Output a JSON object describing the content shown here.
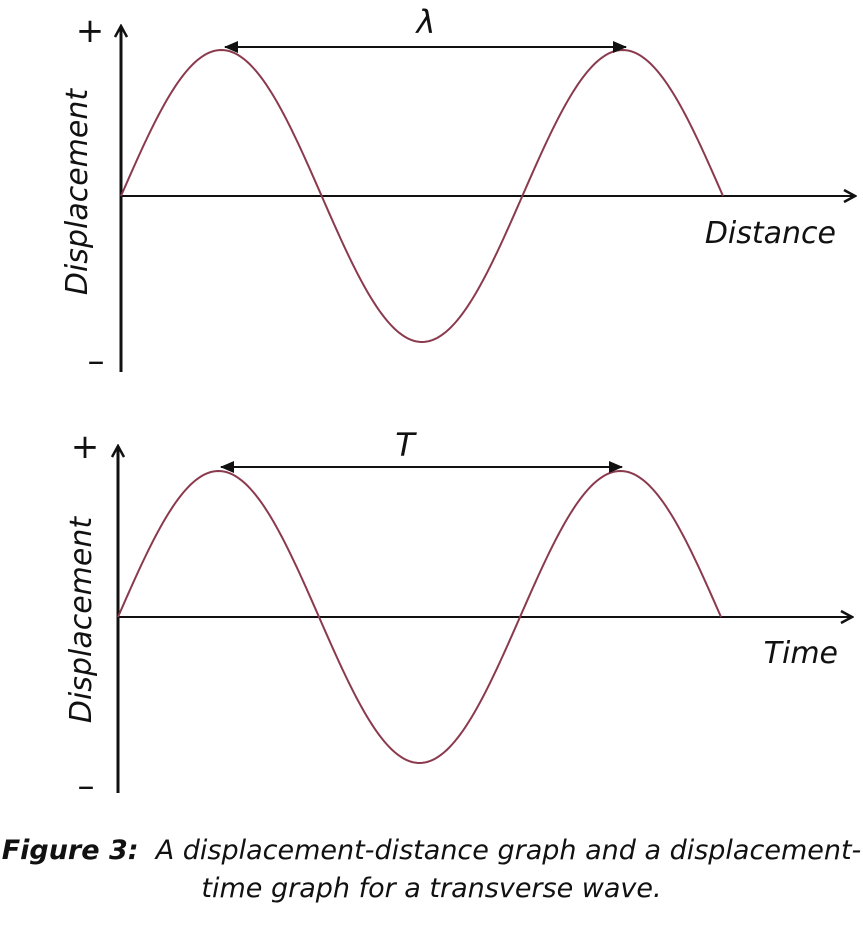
{
  "colors": {
    "wave": "#8b3a4e",
    "axes": "#111111"
  },
  "panels": [
    {
      "x_label": "Distance",
      "y_label": "Displacement",
      "plus_label": "+",
      "minus_label": "–",
      "marker_label": "λ",
      "cycles_shown": 1.5
    },
    {
      "x_label": "Time",
      "y_label": "Displacement",
      "plus_label": "+",
      "minus_label": "–",
      "marker_label": "T",
      "cycles_shown": 1.5
    }
  ],
  "caption": {
    "label": "Figure 3:",
    "text": "A displacement-distance graph and a displacement-time graph for a transverse wave."
  }
}
